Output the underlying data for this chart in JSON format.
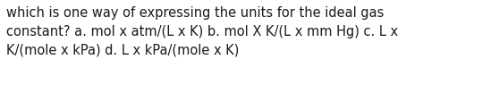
{
  "line1": "which is one way of expressing the units for the ideal gas",
  "line2": "constant? a. mol x atm/(L x K) b. mol X K/(L x mm Hg) c. L x",
  "line3": "K/(mole x kPa) d. L x kPa/(mole x K)",
  "background_color": "#ffffff",
  "text_color": "#1a1a1a",
  "font_size": 10.5,
  "font_family": "DejaVu Sans"
}
